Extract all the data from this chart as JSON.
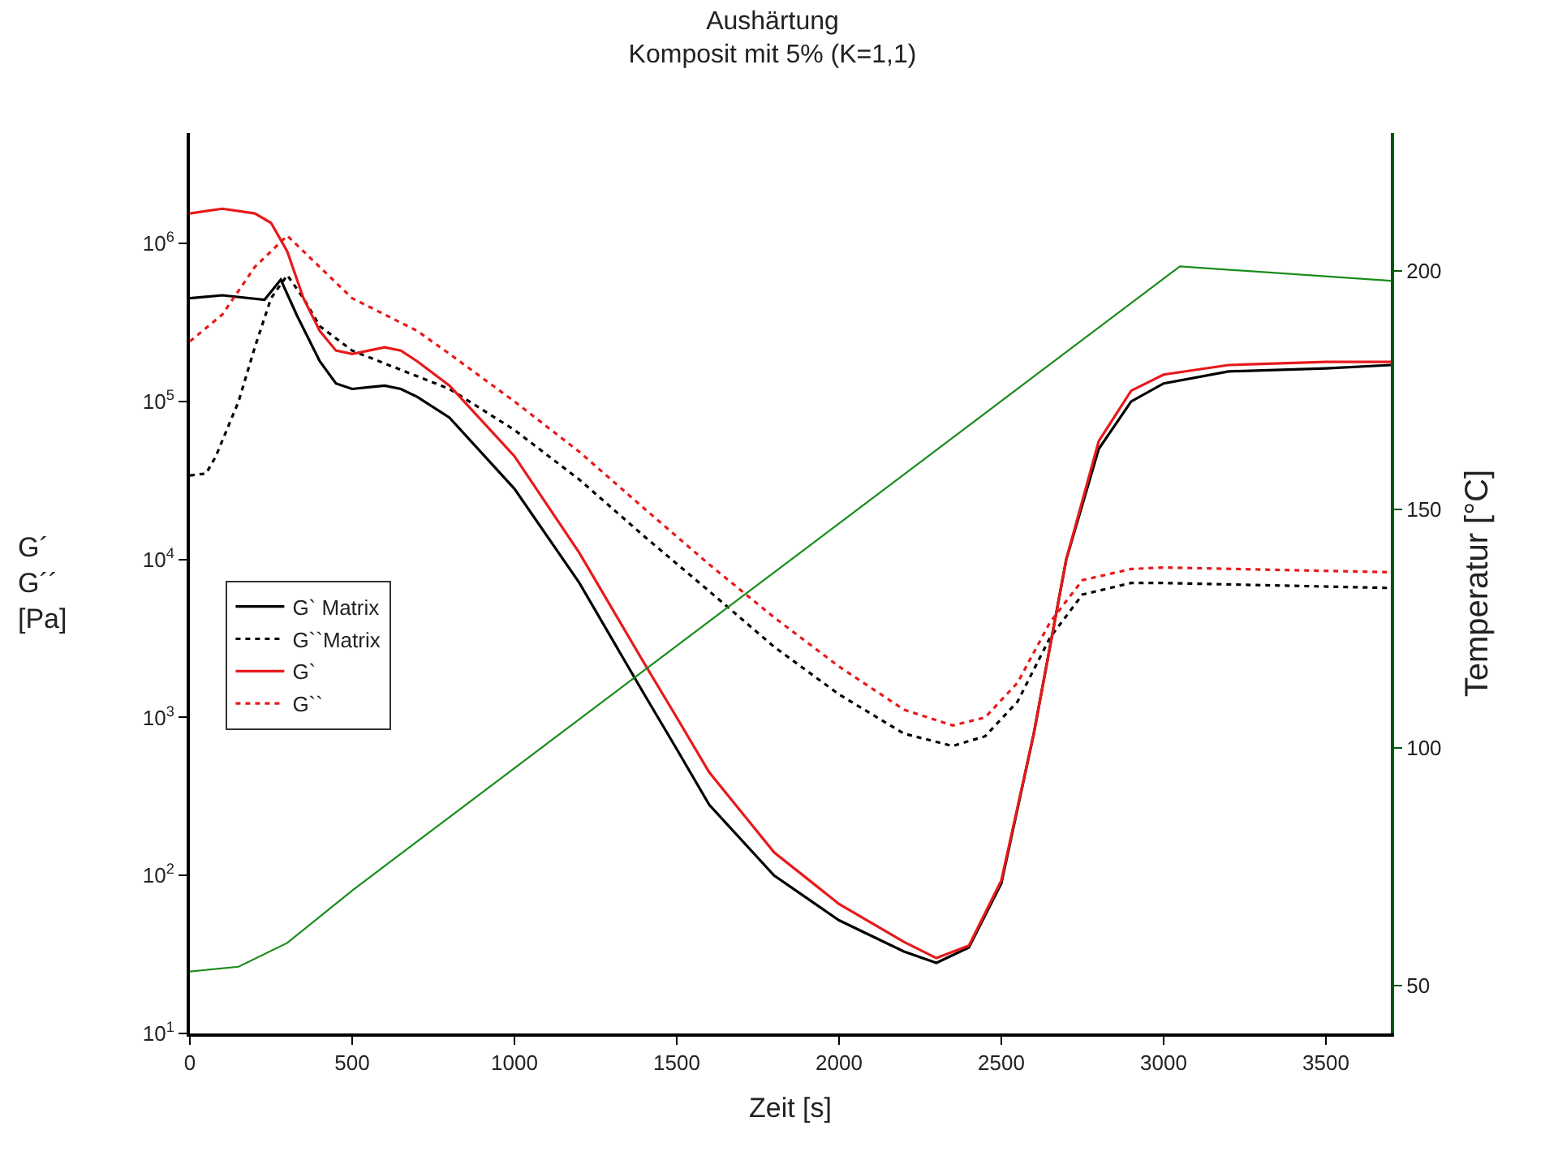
{
  "chart_data": {
    "type": "line",
    "title": "Aushärtung\nKomposit mit 5% (K=1,1)",
    "xlabel": "Zeit [s]",
    "ylabel": "G´\nG´´\n[Pa]",
    "y2label": "Temperatur [°C]",
    "log": "y",
    "legend": "left",
    "marker": "none",
    "xlim": [
      0,
      3700
    ],
    "xticks": [
      0,
      500,
      1000,
      1500,
      2000,
      2500,
      3000,
      3500
    ],
    "ylim": [
      10,
      5000000
    ],
    "yticks": [
      {
        "value": 10,
        "label": "10$^{1}$"
      },
      {
        "value": 100,
        "label": "10$^{2}$"
      },
      {
        "value": 1000,
        "label": "10$^{3}$"
      },
      {
        "value": 10000,
        "label": "10$^{4}$"
      },
      {
        "value": 100000,
        "label": "10$^{5}$"
      },
      {
        "value": 1000000,
        "label": "10$^{6}$"
      }
    ],
    "y2lim": [
      40,
      229
    ],
    "y2ticks": [
      50,
      100,
      150,
      200
    ],
    "series": [
      {
        "name": "G` Matrix",
        "color": "#000000",
        "line_style": "solid",
        "x": [
          0,
          100,
          230,
          280,
          330,
          400,
          450,
          500,
          550,
          600,
          650,
          700,
          800,
          1000,
          1200,
          1400,
          1500,
          1600,
          1800,
          2000,
          2200,
          2300,
          2400,
          2500,
          2600,
          2700,
          2800,
          2900,
          3000,
          3200,
          3500,
          3700
        ],
        "values": [
          450000,
          470000,
          440000,
          590000,
          350000,
          180000,
          130000,
          120000,
          123000,
          126000,
          120000,
          107000,
          79000,
          28000,
          7100,
          1400,
          630,
          280,
          100,
          52,
          33,
          28,
          35,
          89,
          790,
          10000,
          50000,
          100000,
          130000,
          155000,
          162000,
          170000
        ]
      },
      {
        "name": "G``Matrix",
        "color": "#000000",
        "line_style": "dotted",
        "x": [
          0,
          50,
          80,
          150,
          200,
          250,
          300,
          350,
          400,
          500,
          600,
          800,
          1000,
          1200,
          1400,
          1600,
          1800,
          2000,
          2200,
          2350,
          2450,
          2550,
          2650,
          2750,
          2900,
          3000,
          3700
        ],
        "values": [
          34000,
          35000,
          45000,
          100000,
          220000,
          450000,
          630000,
          450000,
          300000,
          210000,
          174000,
          120000,
          66000,
          32000,
          14000,
          6300,
          2800,
          1400,
          790,
          660,
          760,
          1260,
          3200,
          6000,
          7100,
          7100,
          6600
        ]
      },
      {
        "name": "G`",
        "color": "#e8191a",
        "line_style": "solid",
        "x": [
          0,
          100,
          200,
          250,
          300,
          350,
          400,
          450,
          500,
          600,
          650,
          700,
          800,
          1000,
          1200,
          1400,
          1500,
          1600,
          1800,
          2000,
          2200,
          2300,
          2400,
          2500,
          2600,
          2700,
          2800,
          2900,
          3000,
          3200,
          3500,
          3700
        ],
        "values": [
          1550000,
          1660000,
          1550000,
          1350000,
          890000,
          450000,
          280000,
          210000,
          200000,
          220000,
          210000,
          180000,
          126000,
          45000,
          11000,
          2200,
          1000,
          450,
          140,
          66,
          38,
          30,
          36,
          93,
          790,
          10000,
          56000,
          117000,
          148000,
          170000,
          178000,
          178000
        ]
      },
      {
        "name": "G``",
        "color": "#e8191a",
        "line_style": "dotted",
        "x": [
          0,
          100,
          200,
          300,
          400,
          500,
          600,
          700,
          800,
          1000,
          1200,
          1400,
          1600,
          1800,
          2000,
          2200,
          2350,
          2450,
          2550,
          2650,
          2750,
          2900,
          3000,
          3700
        ],
        "values": [
          240000,
          355000,
          710000,
          1120000,
          710000,
          450000,
          355000,
          280000,
          200000,
          100000,
          48000,
          21000,
          9300,
          4300,
          2100,
          1120,
          890,
          1000,
          1660,
          4000,
          7400,
          8700,
          8900,
          8300
        ]
      },
      {
        "color": "#1a8c1a",
        "line_style": "solid",
        "axis": "y2",
        "x": [
          0,
          150,
          300,
          500,
          3050,
          3700
        ],
        "values": [
          53,
          54,
          59,
          70,
          201,
          198
        ]
      }
    ]
  }
}
